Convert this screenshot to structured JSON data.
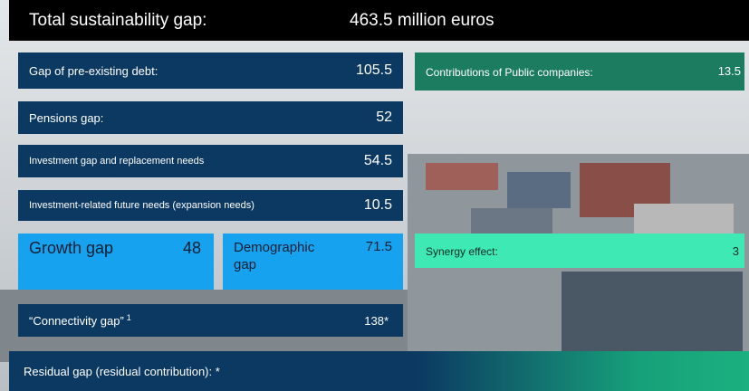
{
  "header": {
    "title": "Total sustainability gap:",
    "total": "463.5 million euros"
  },
  "left": {
    "debt": {
      "label": "Gap of pre-existing debt:",
      "value": "105.5"
    },
    "pensions": {
      "label": "Pensions gap:",
      "value": "52"
    },
    "investment": {
      "label": "Investment gap and replacement needs",
      "value": "54.5"
    },
    "expansion": {
      "label": "Investment-related future needs (expansion needs)",
      "value": "10.5"
    },
    "growth": {
      "label": "Growth gap",
      "value": "48"
    },
    "demographic": {
      "label": "Demographic gap",
      "value": "71.5"
    },
    "connectivity": {
      "label": "“Connectivity gap”",
      "footnote": "1",
      "value": "138*"
    }
  },
  "right": {
    "public": {
      "label": "Contributions of Public companies:",
      "value": "13.5"
    },
    "synergy": {
      "label": "Synergy effect:",
      "value": "3"
    }
  },
  "residual": {
    "label": "Residual gap (residual contribution): *"
  }
}
